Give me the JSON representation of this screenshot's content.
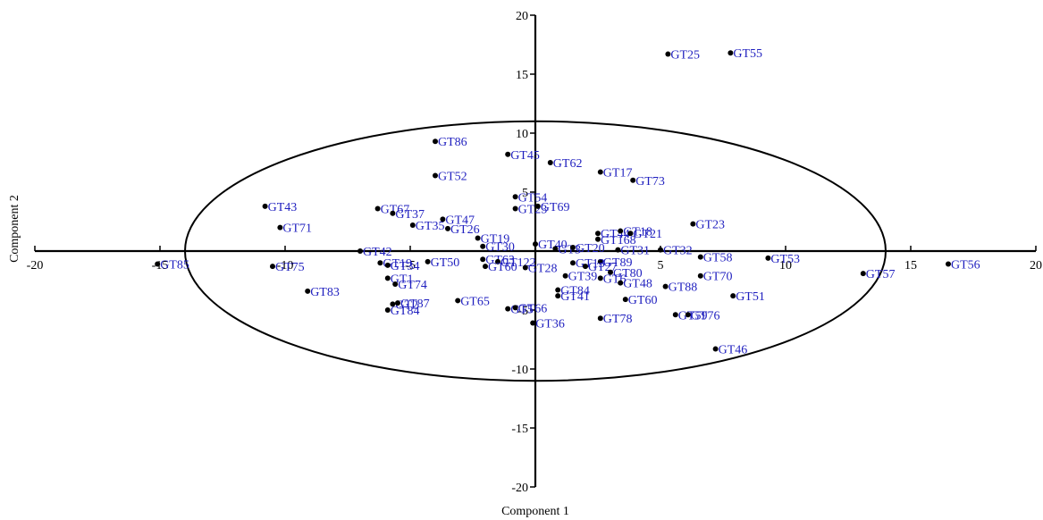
{
  "chart_data": {
    "type": "scatter",
    "xlabel": "Component 1",
    "ylabel": "Component 2",
    "xlim": [
      -20,
      20
    ],
    "ylim": [
      -20,
      20
    ],
    "xticks": [
      -20,
      -15,
      -10,
      -5,
      5,
      10,
      15,
      20
    ],
    "yticks": [
      -20,
      -15,
      -10,
      -5,
      5,
      10,
      15,
      20
    ],
    "grid": false,
    "ellipse": {
      "cx": 0,
      "cy": 0,
      "rx": 14,
      "ry": 11
    },
    "label_color": "#1f1fbf",
    "point_color": "#000000",
    "points": [
      {
        "label": "GT25",
        "x": 5.3,
        "y": 16.7
      },
      {
        "label": "GT55",
        "x": 7.8,
        "y": 16.8
      },
      {
        "label": "GT86",
        "x": -4.0,
        "y": 9.3
      },
      {
        "label": "GT45",
        "x": -1.1,
        "y": 8.2
      },
      {
        "label": "GT62",
        "x": 0.6,
        "y": 7.5
      },
      {
        "label": "GT17",
        "x": 2.6,
        "y": 6.7
      },
      {
        "label": "GT73",
        "x": 3.9,
        "y": 6.0
      },
      {
        "label": "GT52",
        "x": -4.0,
        "y": 6.4
      },
      {
        "label": "GT54",
        "x": -0.8,
        "y": 4.6
      },
      {
        "label": "GT23",
        "x": -0.8,
        "y": 3.6
      },
      {
        "label": "GT69",
        "x": 0.1,
        "y": 3.8
      },
      {
        "label": "GT43",
        "x": -10.8,
        "y": 3.8
      },
      {
        "label": "GT67",
        "x": -6.3,
        "y": 3.6
      },
      {
        "label": "GT37",
        "x": -5.7,
        "y": 3.2
      },
      {
        "label": "GT71",
        "x": -10.2,
        "y": 2.0
      },
      {
        "label": "GT35",
        "x": -4.9,
        "y": 2.2
      },
      {
        "label": "GT47",
        "x": -3.7,
        "y": 2.7
      },
      {
        "label": "GT26",
        "x": -3.5,
        "y": 1.9
      },
      {
        "label": "GT23",
        "x": 6.3,
        "y": 2.3
      },
      {
        "label": "GT44",
        "x": 2.5,
        "y": 1.5
      },
      {
        "label": "GT18",
        "x": 3.4,
        "y": 1.7
      },
      {
        "label": "GT21",
        "x": 3.8,
        "y": 1.5
      },
      {
        "label": "GT168",
        "x": 2.5,
        "y": 1.0
      },
      {
        "label": "GT19",
        "x": -2.3,
        "y": 1.1
      },
      {
        "label": "GT40",
        "x": 0.0,
        "y": 0.6
      },
      {
        "label": "GT30",
        "x": -2.1,
        "y": 0.4
      },
      {
        "label": "GT3",
        "x": 0.8,
        "y": 0.2
      },
      {
        "label": "GT20",
        "x": 1.5,
        "y": 0.3
      },
      {
        "label": "GT31",
        "x": 3.3,
        "y": 0.1
      },
      {
        "label": "GT32",
        "x": 5.0,
        "y": 0.1
      },
      {
        "label": "GT58",
        "x": 6.6,
        "y": -0.5
      },
      {
        "label": "GT53",
        "x": 9.3,
        "y": -0.6
      },
      {
        "label": "GT56",
        "x": 16.5,
        "y": -1.1
      },
      {
        "label": "GT57",
        "x": 13.1,
        "y": -1.9
      },
      {
        "label": "GT85",
        "x": -15.1,
        "y": -1.1
      },
      {
        "label": "GT75",
        "x": -10.5,
        "y": -1.3
      },
      {
        "label": "GT42",
        "x": -7.0,
        "y": 0.0
      },
      {
        "label": "GT19",
        "x": -6.2,
        "y": -1.0
      },
      {
        "label": "GT34",
        "x": -5.9,
        "y": -1.2
      },
      {
        "label": "GT50",
        "x": -4.3,
        "y": -0.9
      },
      {
        "label": "GT63",
        "x": -2.1,
        "y": -0.7
      },
      {
        "label": "GT122",
        "x": -1.5,
        "y": -0.9
      },
      {
        "label": "GT60",
        "x": -2.0,
        "y": -1.3
      },
      {
        "label": "GT28",
        "x": -0.4,
        "y": -1.4
      },
      {
        "label": "GT89",
        "x": 2.6,
        "y": -0.9
      },
      {
        "label": "GT13",
        "x": 1.5,
        "y": -1.0
      },
      {
        "label": "GT27",
        "x": 2.0,
        "y": -1.3
      },
      {
        "label": "GT80",
        "x": 3.0,
        "y": -1.8
      },
      {
        "label": "GT39",
        "x": 1.2,
        "y": -2.1
      },
      {
        "label": "GT6",
        "x": 2.6,
        "y": -2.3
      },
      {
        "label": "GT48",
        "x": 3.4,
        "y": -2.7
      },
      {
        "label": "GT88",
        "x": 5.2,
        "y": -3.0
      },
      {
        "label": "GT70",
        "x": 6.6,
        "y": -2.1
      },
      {
        "label": "GT51",
        "x": 7.9,
        "y": -3.8
      },
      {
        "label": "GT1",
        "x": -5.9,
        "y": -2.3
      },
      {
        "label": "GT74",
        "x": -5.6,
        "y": -2.8
      },
      {
        "label": "GT83",
        "x": -9.1,
        "y": -3.4
      },
      {
        "label": "GT84",
        "x": 0.9,
        "y": -3.3
      },
      {
        "label": "GT41",
        "x": 0.9,
        "y": -3.8
      },
      {
        "label": "GT60",
        "x": 3.6,
        "y": -4.1
      },
      {
        "label": "GT2",
        "x": -5.7,
        "y": -4.5
      },
      {
        "label": "GT87",
        "x": -5.5,
        "y": -4.4
      },
      {
        "label": "GT84",
        "x": -5.9,
        "y": -5.0
      },
      {
        "label": "GT65",
        "x": -3.1,
        "y": -4.2
      },
      {
        "label": "GT5",
        "x": -1.1,
        "y": -4.9
      },
      {
        "label": "GT66",
        "x": -0.8,
        "y": -4.8
      },
      {
        "label": "GT36",
        "x": -0.1,
        "y": -6.1
      },
      {
        "label": "GT78",
        "x": 2.6,
        "y": -5.7
      },
      {
        "label": "GT59",
        "x": 5.6,
        "y": -5.4
      },
      {
        "label": "GT76",
        "x": 6.1,
        "y": -5.4
      },
      {
        "label": "GT46",
        "x": 7.2,
        "y": -8.3
      }
    ]
  }
}
